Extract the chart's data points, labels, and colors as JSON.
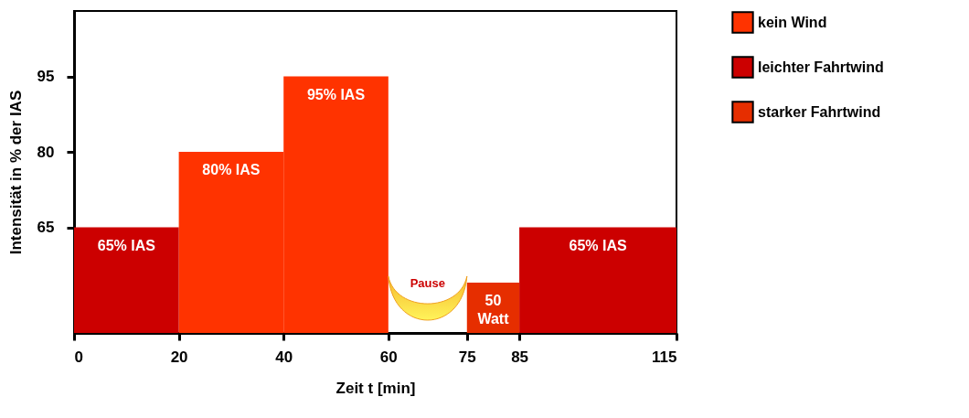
{
  "chart_data": {
    "type": "histogram",
    "xlabel": "Zeit t [min]",
    "ylabel": "Intensität in % der IAS",
    "bins": [
      0,
      20,
      40,
      60,
      75,
      85,
      115
    ],
    "series": [
      {
        "name": "kein Wind",
        "color": "#ff3300",
        "values": [
          null,
          80,
          95,
          null,
          null,
          null
        ],
        "value_labels": [
          null,
          "80% IAS",
          "95% IAS",
          null,
          null,
          null
        ]
      },
      {
        "name": "leichter Fahrtwind",
        "color": "#cc0000",
        "values": [
          65,
          null,
          null,
          null,
          null,
          65
        ],
        "value_labels": [
          "65% IAS",
          null,
          null,
          null,
          null,
          "65% IAS"
        ]
      },
      {
        "name": "starker Fahrtwind",
        "color": "#e62e00",
        "values": [
          null,
          null,
          null,
          null,
          54,
          null
        ]
      }
    ],
    "annotations": [
      "Pause",
      {
        "text": "50\nWatt",
        "x": 80,
        "y": 54
      }
    ],
    "xlim": [
      0,
      115
    ],
    "xticks": [
      0,
      20,
      40,
      60,
      75,
      85,
      115
    ],
    "ylim": [
      44,
      108
    ],
    "yticks": [
      65,
      80,
      95
    ],
    "grid": false,
    "legend": "right"
  }
}
